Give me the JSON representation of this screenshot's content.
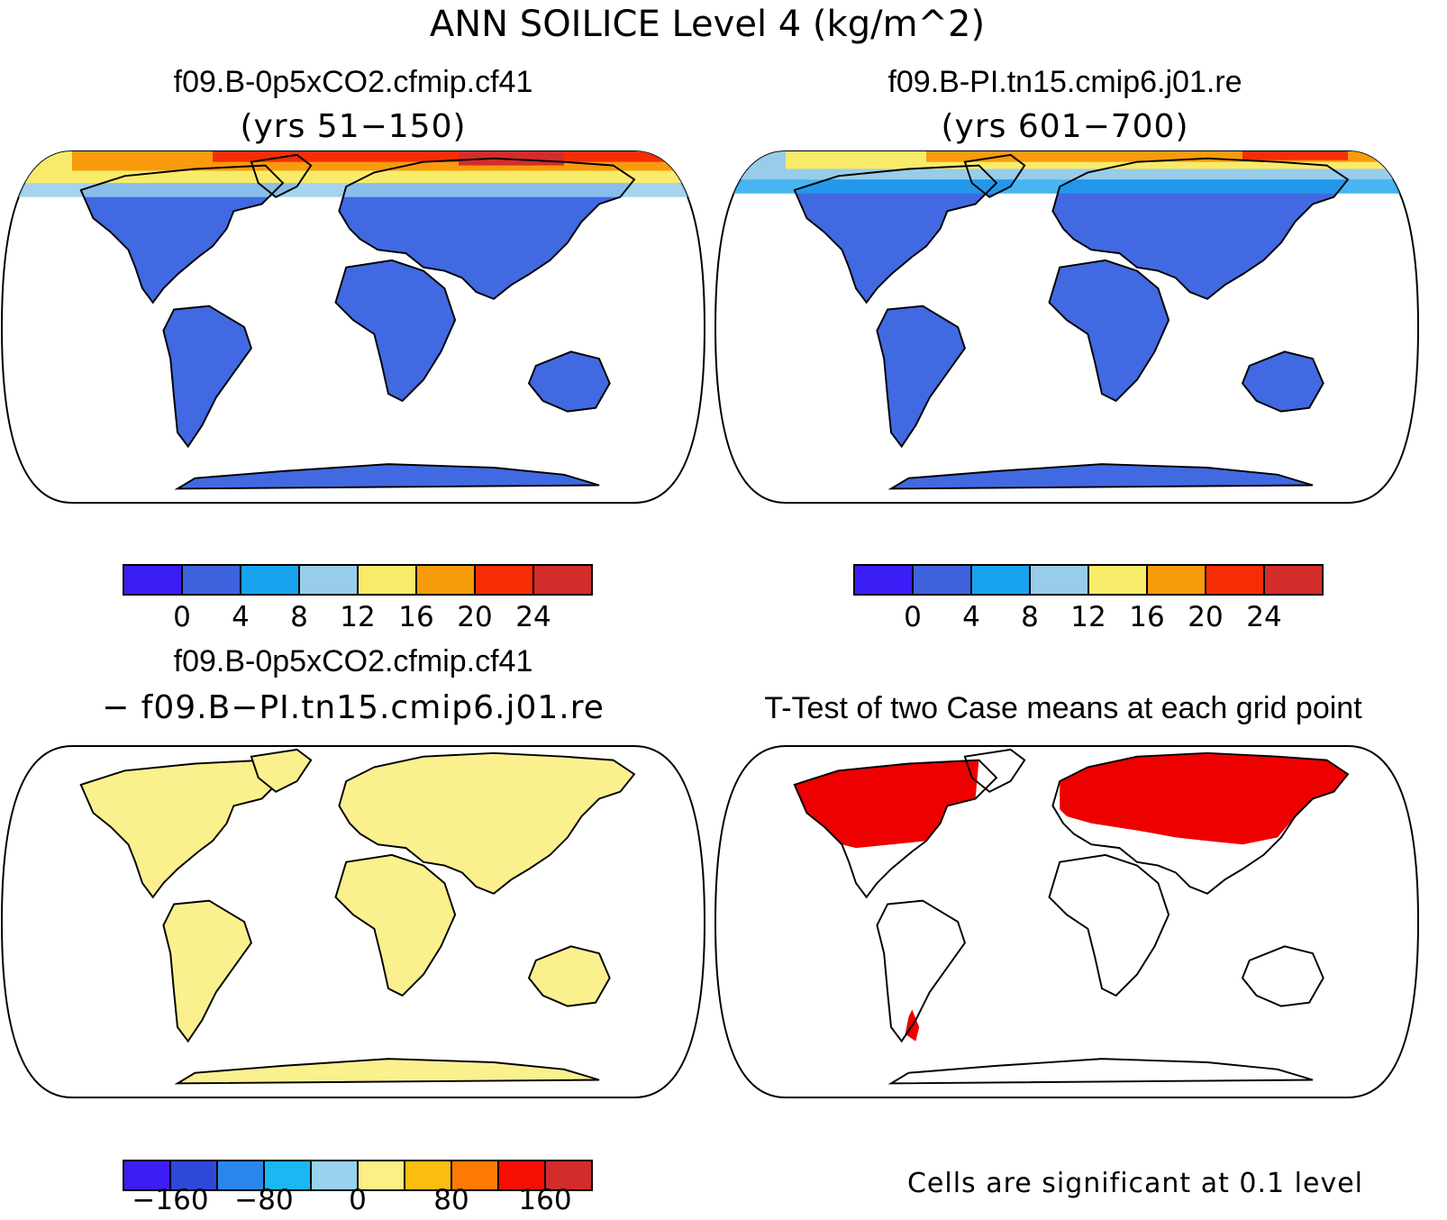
{
  "title": "ANN SOILICE Level 4 (kg/m^2)",
  "colors": {
    "frame": "#000000",
    "background": "#ffffff",
    "ttest_significant": "#ee0000",
    "diff_fill": "#fbf08e",
    "base_land": "#4169e1"
  },
  "panels": [
    {
      "id": "case1",
      "title": "f09.B-0p5xCO2.cfmip.cf41",
      "subtitle": "(yrs 51−150)",
      "fill": "field"
    },
    {
      "id": "case2",
      "title": "f09.B-PI.tn15.cmip6.j01.re",
      "subtitle": "(yrs 601−700)",
      "fill": "field"
    },
    {
      "id": "diff",
      "title": "f09.B-0p5xCO2.cfmip.cf41",
      "subtitle": "− f09.B−PI.tn15.cmip6.j01.re",
      "fill": "diff"
    },
    {
      "id": "ttest",
      "title": "T-Test of two Case means at each grid point",
      "subtitle": "",
      "fill": "ttest"
    }
  ],
  "colorbars": {
    "field": {
      "colors": [
        "#3b1ef5",
        "#3e63dd",
        "#1aa3ef",
        "#97cdeb",
        "#f9eb6a",
        "#f89b0c",
        "#f72d06",
        "#d22d2b"
      ],
      "tick_labels": [
        "0",
        "4",
        "8",
        "12",
        "16",
        "20",
        "24"
      ]
    },
    "diff": {
      "colors": [
        "#3b1ef5",
        "#2e48d9",
        "#2a86ea",
        "#1ab7f2",
        "#98d2ee",
        "#fbef86",
        "#fcbd10",
        "#fc7a05",
        "#f70f05",
        "#d22d2b"
      ],
      "tick_labels": [
        "−160",
        "−80",
        "0",
        "80",
        "160"
      ]
    }
  },
  "note": "Cells are significant at 0.1 level"
}
